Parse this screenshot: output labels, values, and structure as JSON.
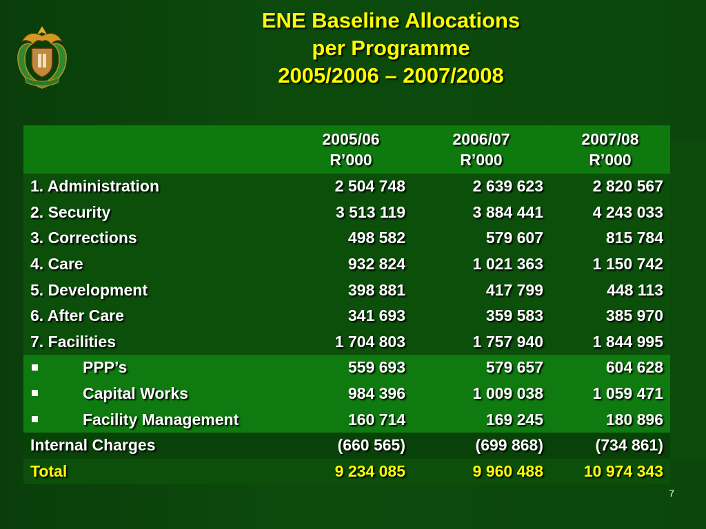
{
  "title": {
    "line1": "ENE Baseline Allocations",
    "line2": "per Programme",
    "line3": "2005/2006 – 2007/2008"
  },
  "table": {
    "columns": [
      {
        "year": "2005/06",
        "unit": "R’000"
      },
      {
        "year": "2006/07",
        "unit": "R’000"
      },
      {
        "year": "2007/08",
        "unit": "R’000"
      }
    ],
    "rows": [
      {
        "label": "1. Administration",
        "values": [
          "2 504 748",
          "2 639 623",
          "2 820 567"
        ]
      },
      {
        "label": "2. Security",
        "values": [
          "3 513 119",
          "3 884 441",
          "4 243 033"
        ]
      },
      {
        "label": "3. Corrections",
        "values": [
          "498 582",
          "579 607",
          "815 784"
        ]
      },
      {
        "label": "4. Care",
        "values": [
          "932 824",
          "1 021 363",
          "1 150 742"
        ]
      },
      {
        "label": "5. Development",
        "values": [
          "398 881",
          "417 799",
          "448 113"
        ]
      },
      {
        "label": "6. After Care",
        "values": [
          "341 693",
          "359 583",
          "385 970"
        ]
      },
      {
        "label": "7. Facilities",
        "values": [
          "1 704 803",
          "1 757 940",
          "1 844 995"
        ]
      },
      {
        "label": "PPP’s",
        "values": [
          "559 693",
          "579 657",
          "604 628"
        ]
      },
      {
        "label": "Capital Works",
        "values": [
          "984 396",
          "1 009 038",
          "1 059 471"
        ]
      },
      {
        "label": "Facility Management",
        "values": [
          "160 714",
          "169 245",
          "180 896"
        ]
      },
      {
        "label": "Internal Charges",
        "values": [
          "(660 565)",
          "(699 868)",
          "(734 861)"
        ]
      },
      {
        "label": "Total",
        "values": [
          "9 234 085",
          "9 960 488",
          "10 974 343"
        ]
      }
    ]
  },
  "page_number": "7",
  "colors": {
    "background": "#0b470b",
    "title": "#ffff00",
    "header_band": "#0e7a0e",
    "total_text": "#ffff00"
  },
  "icons": {
    "crest": "coat-of-arms-icon",
    "bullet": "square-bullet-icon"
  }
}
